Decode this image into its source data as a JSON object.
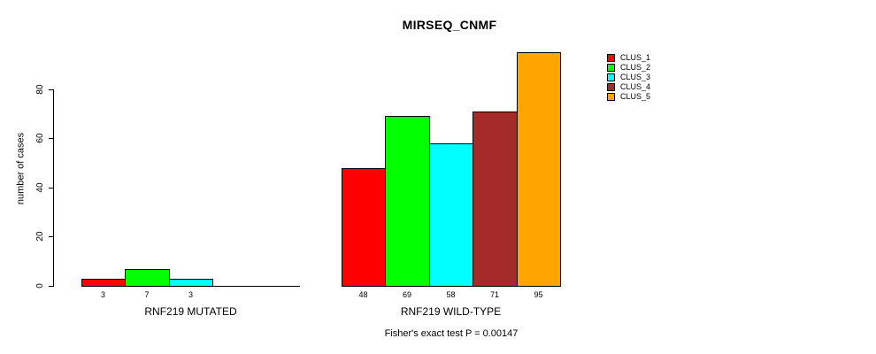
{
  "chart_data": {
    "type": "bar",
    "title": "MIRSEQ_CNMF",
    "ylabel": "number of cases",
    "yticks": [
      0,
      20,
      40,
      60,
      80
    ],
    "ylim": [
      0,
      95
    ],
    "grid": false,
    "legend_position": "right",
    "series_names": [
      "CLUS_1",
      "CLUS_2",
      "CLUS_3",
      "CLUS_4",
      "CLUS_5"
    ],
    "series_colors": [
      "#FF0000",
      "#00FF00",
      "#00FFFF",
      "#A52A2A",
      "#FFA500"
    ],
    "categories": [
      "RNF219 MUTATED",
      "RNF219 WILD-TYPE"
    ],
    "groups": [
      {
        "label": "RNF219 MUTATED",
        "values": [
          3,
          7,
          3,
          0,
          0
        ]
      },
      {
        "label": "RNF219 WILD-TYPE",
        "values": [
          48,
          69,
          58,
          71,
          95
        ]
      }
    ],
    "footnote": "Fisher's exact test P = 0.00147"
  },
  "colors": {
    "background": "#FFFFFF",
    "axis": "#000000",
    "text": "#000000"
  }
}
